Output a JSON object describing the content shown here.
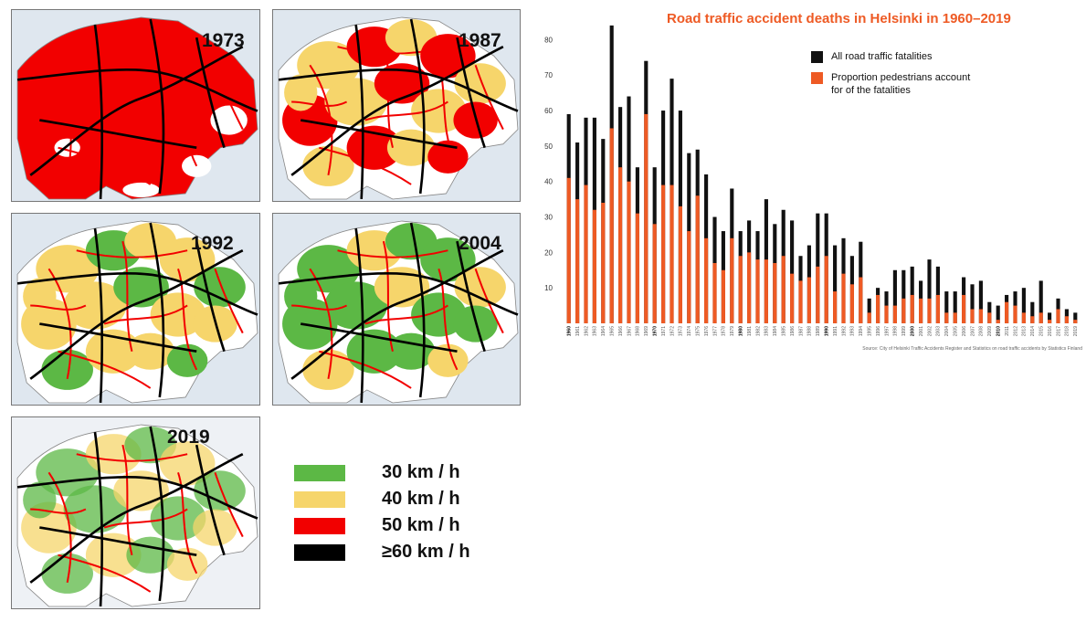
{
  "maps": [
    {
      "year": "1973"
    },
    {
      "year": "1987"
    },
    {
      "year": "1992"
    },
    {
      "year": "2004"
    },
    {
      "year": "2019"
    }
  ],
  "legend": {
    "items": [
      {
        "label": "30 km / h",
        "color": "#5cb845"
      },
      {
        "label": "40 km / h",
        "color": "#f6d56b"
      },
      {
        "label": "50 km / h",
        "color": "#f20000"
      },
      {
        "label": "≥60 km / h",
        "color": "#000000"
      }
    ]
  },
  "colors": {
    "water": "#dfe7ef",
    "land_white": "#ffffff",
    "all_fatalities": "#111111",
    "pedestrians": "#ee5a24"
  },
  "chart_data": {
    "type": "bar",
    "title": "Road traffic accident deaths in Helsinki in 1960–2019",
    "source": "Source: City of Helsinki Traffic Accidents Register and Statistics on road traffic accidents by Statistics Finland",
    "ylim": [
      0,
      85
    ],
    "yticks": [
      10,
      20,
      30,
      40,
      50,
      60,
      70,
      80
    ],
    "x": [
      1960,
      1961,
      1962,
      1963,
      1964,
      1965,
      1966,
      1967,
      1968,
      1969,
      1970,
      1971,
      1972,
      1973,
      1974,
      1975,
      1976,
      1977,
      1978,
      1979,
      1980,
      1981,
      1982,
      1983,
      1984,
      1985,
      1986,
      1987,
      1988,
      1989,
      1990,
      1991,
      1992,
      1993,
      1994,
      1995,
      1996,
      1997,
      1998,
      1999,
      2000,
      2001,
      2002,
      2003,
      2004,
      2005,
      2006,
      2007,
      2008,
      2009,
      2010,
      2011,
      2012,
      2013,
      2014,
      2015,
      2016,
      2017,
      2018,
      2019
    ],
    "xtick_labels": [
      "1960",
      "1961",
      "1962",
      "1963",
      "1964",
      "1965",
      "1966",
      "1967",
      "1968",
      "1969",
      "1970",
      "1971",
      "1972",
      "1973",
      "1974",
      "1975",
      "1976",
      "1977",
      "1978",
      "1979",
      "1980",
      "1981",
      "1982",
      "1983",
      "1984",
      "1985",
      "1986",
      "1987",
      "1988",
      "1989",
      "1990",
      "1991",
      "1992",
      "1993",
      "1994",
      "1995",
      "1996",
      "1997",
      "1998",
      "1999",
      "2000",
      "2001",
      "2002",
      "2003",
      "2004",
      "2005",
      "2006",
      "2007",
      "2008",
      "2009",
      "2010",
      "2011",
      "2012",
      "2013",
      "2014",
      "2015",
      "2016",
      "2017",
      "2018",
      "2019"
    ],
    "series": [
      {
        "name": "All road traffic fatalities",
        "color": "#111111",
        "values": [
          59,
          51,
          58,
          58,
          52,
          84,
          61,
          64,
          44,
          74,
          44,
          60,
          69,
          60,
          48,
          49,
          42,
          30,
          26,
          38,
          26,
          29,
          26,
          35,
          28,
          32,
          29,
          19,
          22,
          31,
          31,
          22,
          24,
          19,
          23,
          7,
          10,
          9,
          15,
          15,
          16,
          12,
          18,
          16,
          9,
          9,
          13,
          11,
          12,
          6,
          5,
          8,
          9,
          10,
          6,
          12,
          3,
          7,
          4,
          3
        ]
      },
      {
        "name": "Proportion pedestrians account\nfor of the fatalities",
        "color": "#ee5a24",
        "values": [
          41,
          35,
          39,
          32,
          34,
          55,
          44,
          40,
          31,
          59,
          28,
          39,
          39,
          33,
          26,
          36,
          24,
          17,
          15,
          24,
          19,
          20,
          18,
          18,
          17,
          19,
          14,
          12,
          13,
          16,
          19,
          9,
          14,
          11,
          13,
          3,
          8,
          5,
          5,
          7,
          8,
          7,
          7,
          8,
          3,
          3,
          8,
          4,
          4,
          3,
          1,
          6,
          5,
          3,
          2,
          3,
          1,
          4,
          2,
          1
        ]
      }
    ]
  }
}
